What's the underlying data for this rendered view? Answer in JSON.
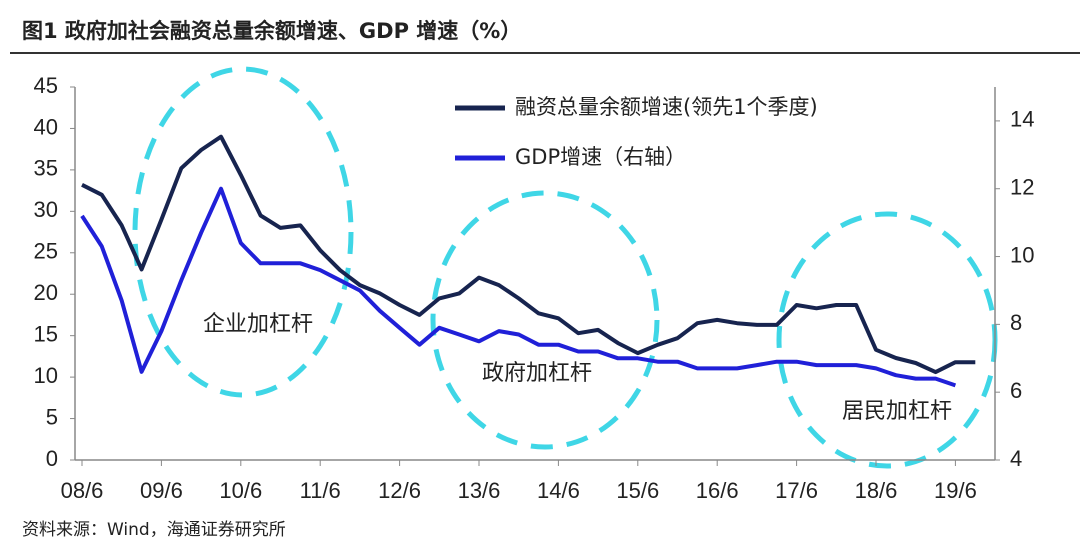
{
  "chart_data": {
    "type": "line",
    "title": "图1   政府加社会融资总量余额增速、GDP 增速（%）",
    "source": "资料来源：Wind，海通证券研究所",
    "annotations": [
      "企业加杠杆",
      "政府加杠杆",
      "居民加杠杆"
    ],
    "categories": [
      "08/6",
      null,
      null,
      null,
      "09/6",
      null,
      null,
      null,
      "10/6",
      null,
      null,
      null,
      "11/6",
      null,
      null,
      null,
      "12/6",
      null,
      null,
      null,
      "13/6",
      null,
      null,
      null,
      "14/6",
      null,
      null,
      null,
      "15/6",
      null,
      null,
      null,
      "16/6",
      null,
      null,
      null,
      "17/6",
      null,
      null,
      null,
      "18/6",
      null,
      null,
      null,
      "19/6",
      null
    ],
    "series": [
      {
        "name": "融资总量余额增速(领先1个季度)",
        "color": "#17244f",
        "values": [
          33.2,
          32,
          28.3,
          23,
          29,
          35.2,
          37.4,
          39,
          34.4,
          29.5,
          28,
          28.3,
          25.3,
          22.9,
          21.1,
          20.1,
          18.7,
          17.5,
          19.5,
          20.1,
          22,
          21.1,
          19.5,
          17.7,
          17.1,
          15.3,
          15.7,
          14.1,
          12.9,
          13.9,
          14.7,
          16.5,
          16.9,
          16.5,
          16.3,
          16.3,
          18.7,
          18.3,
          18.7,
          18.7,
          13.3,
          12.3,
          11.7,
          10.6,
          11.8,
          11.8
        ]
      },
      {
        "name": "GDP增速（右轴）",
        "color": "#2020d8",
        "axis": "y2",
        "values": [
          11.2,
          10.3,
          8.7,
          6.6,
          7.8,
          9.3,
          10.7,
          12.0,
          10.4,
          9.8,
          9.8,
          9.8,
          9.6,
          9.3,
          9.0,
          8.4,
          7.9,
          7.4,
          7.9,
          7.7,
          7.5,
          7.8,
          7.7,
          7.4,
          7.4,
          7.2,
          7.2,
          7.0,
          7.0,
          6.9,
          6.9,
          6.7,
          6.7,
          6.7,
          6.8,
          6.9,
          6.9,
          6.8,
          6.8,
          6.8,
          6.7,
          6.5,
          6.4,
          6.4,
          6.2,
          null
        ]
      }
    ],
    "ylim": [
      0,
      45
    ],
    "yticks": [
      0,
      5,
      10,
      15,
      20,
      25,
      30,
      35,
      40,
      45
    ],
    "y2lim": [
      4,
      15
    ],
    "y2ticks": [
      4,
      6,
      8,
      10,
      12,
      14
    ],
    "legend": "upper right"
  }
}
